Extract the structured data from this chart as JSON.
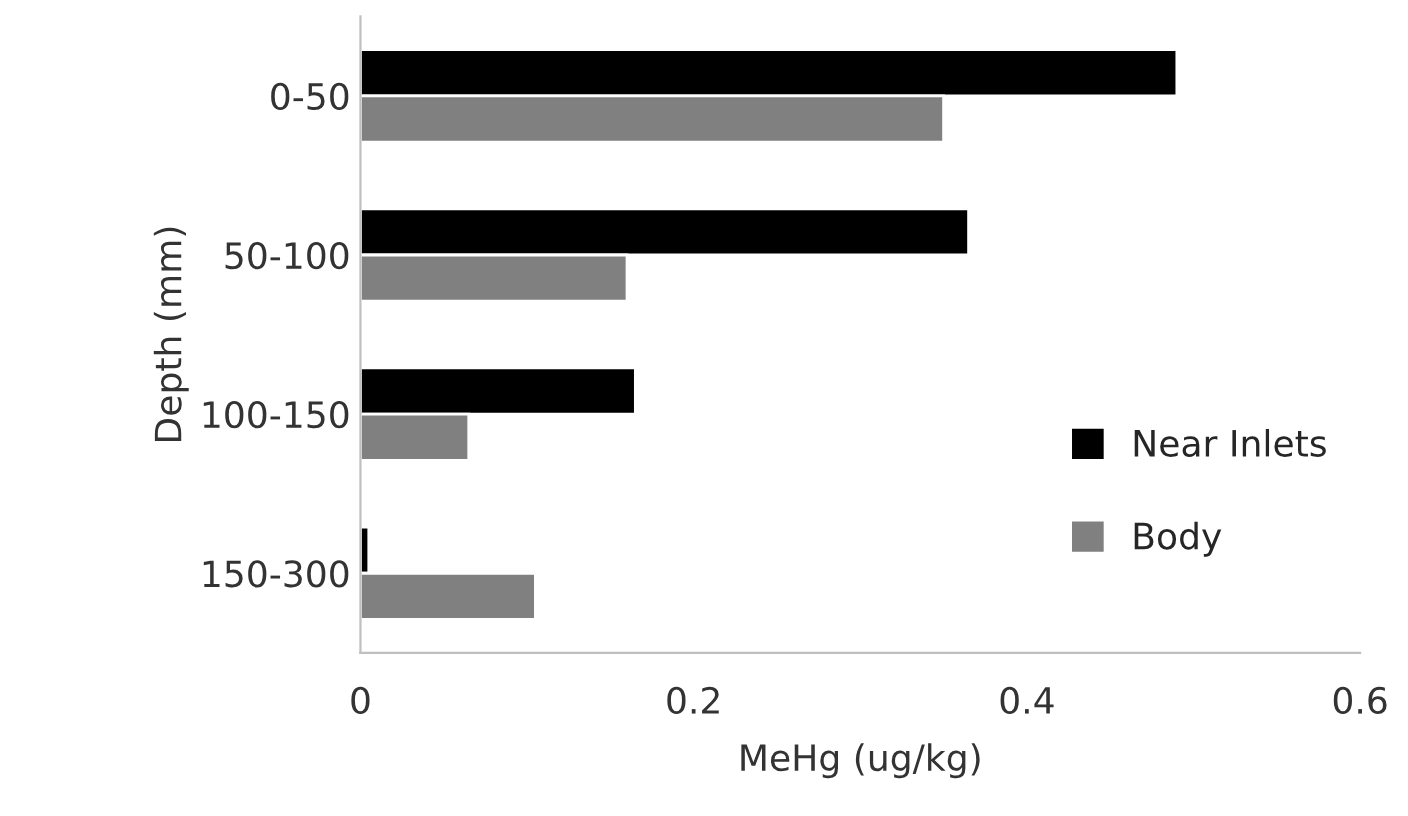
{
  "chart_data": {
    "type": "bar",
    "orientation": "horizontal",
    "xlabel": "MeHg (ug/kg)",
    "ylabel": "Depth (mm)",
    "categories": [
      "0-50",
      "50-100",
      "100-150",
      "150-300"
    ],
    "series": [
      {
        "name": "Near Inlets",
        "color": "#000000",
        "values": [
          0.49,
          0.365,
          0.165,
          0.005
        ]
      },
      {
        "name": "Body",
        "color": "#808080",
        "values": [
          0.35,
          0.16,
          0.065,
          0.105
        ]
      }
    ],
    "xlim": [
      0,
      0.6
    ],
    "xticks": [
      0,
      0.2,
      0.4,
      0.6
    ],
    "grid": false,
    "legend": "bottom right"
  }
}
